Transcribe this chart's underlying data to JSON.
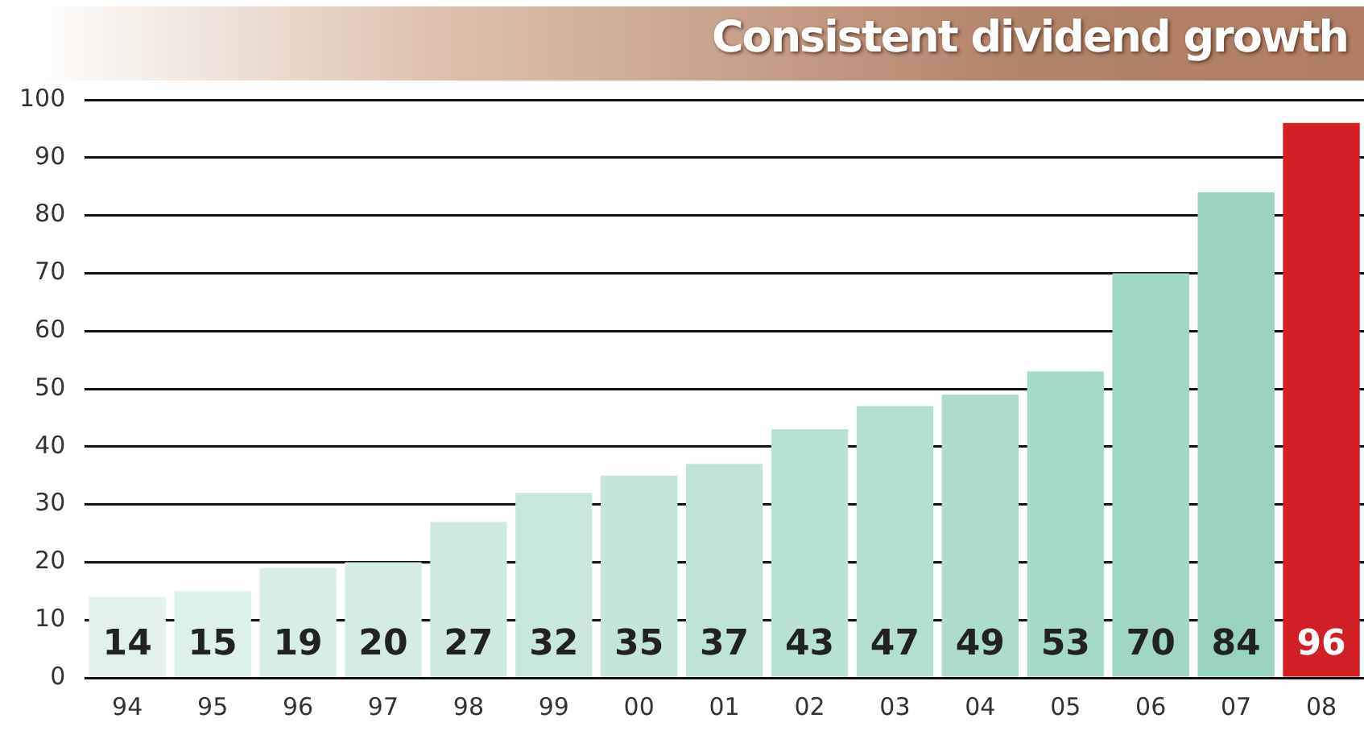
{
  "chart_data": {
    "type": "bar",
    "title": "Consistent dividend growth",
    "categories": [
      "94",
      "95",
      "96",
      "97",
      "98",
      "99",
      "00",
      "01",
      "02",
      "03",
      "04",
      "05",
      "06",
      "07",
      "08"
    ],
    "values": [
      14,
      15,
      19,
      20,
      27,
      32,
      35,
      37,
      43,
      47,
      49,
      53,
      70,
      84,
      96
    ],
    "colors": [
      "#e3f1ee",
      "#def0eb",
      "#d9eee8",
      "#d5ece5",
      "#cfe9e2",
      "#cae7df",
      "#c5e5dc",
      "#bfe3d8",
      "#b9e1d5",
      "#b3ded1",
      "#addbcd",
      "#a7d9ca",
      "#a1d6c5",
      "#98d2c0",
      "#d11f24"
    ],
    "ylim": [
      0,
      100
    ],
    "yticks": [
      0,
      10,
      20,
      30,
      40,
      50,
      60,
      70,
      80,
      90,
      100
    ],
    "grid": "y",
    "legend": false,
    "data_labels": true
  }
}
